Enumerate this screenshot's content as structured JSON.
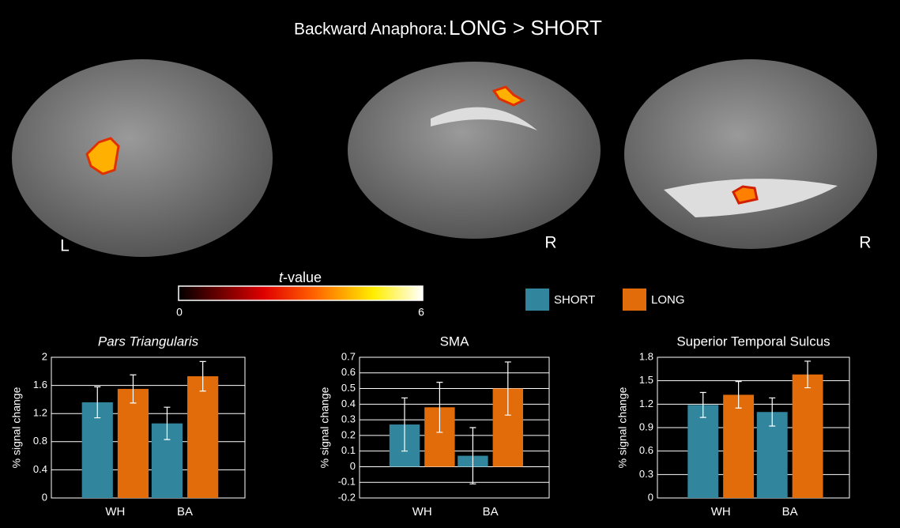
{
  "figure": {
    "title": [
      "Backward Anaphora:",
      "LONG > SHORT"
    ],
    "side_labels": [
      "L",
      "R",
      "R"
    ],
    "colorbar": {
      "label": [
        "t",
        "-value"
      ],
      "range": [
        0,
        6
      ],
      "ticks": [
        0,
        6
      ]
    }
  },
  "chart_data": [
    {
      "type": "bar",
      "title": "Pars Triangularis",
      "ylabel": "% signal change",
      "categories": [
        "WH",
        "BA"
      ],
      "series": [
        {
          "name": "SHORT",
          "color": "#31859c",
          "values": [
            1.36,
            1.06
          ],
          "errors": [
            0.22,
            0.23
          ]
        },
        {
          "name": "LONG",
          "color": "#e36c0a",
          "values": [
            1.55,
            1.73
          ],
          "errors": [
            0.2,
            0.21
          ]
        }
      ],
      "ylim": [
        0,
        2
      ],
      "yticks": [
        0,
        0.4,
        0.8,
        1.2,
        1.6,
        2
      ],
      "grid": true
    },
    {
      "type": "bar",
      "title": "SMA",
      "ylabel": "% signal change",
      "categories": [
        "WH",
        "BA"
      ],
      "series": [
        {
          "color": "#31859c",
          "values": [
            0.27,
            0.07
          ],
          "errors": [
            0.17,
            0.18
          ]
        },
        {
          "color": "#e36c0a",
          "values": [
            0.38,
            0.5
          ],
          "errors": [
            0.16,
            0.17
          ]
        }
      ],
      "ylim": [
        -0.2,
        0.7
      ],
      "yticks": [
        -0.2,
        -0.1,
        0,
        0.1,
        0.2,
        0.3,
        0.4,
        0.5,
        0.6,
        0.7
      ],
      "grid": true
    },
    {
      "type": "bar",
      "title": "Superior Temporal Sulcus",
      "ylabel": "% signal change",
      "categories": [
        "WH",
        "BA"
      ],
      "series": [
        {
          "color": "#31859c",
          "values": [
            1.19,
            1.1
          ],
          "errors": [
            0.16,
            0.18
          ]
        },
        {
          "color": "#e36c0a",
          "values": [
            1.32,
            1.58
          ],
          "errors": [
            0.17,
            0.17
          ]
        }
      ],
      "ylim": [
        0,
        1.8
      ],
      "yticks": [
        0,
        0.3,
        0.6,
        0.9,
        1.2,
        1.5,
        1.8
      ],
      "grid": true
    }
  ]
}
